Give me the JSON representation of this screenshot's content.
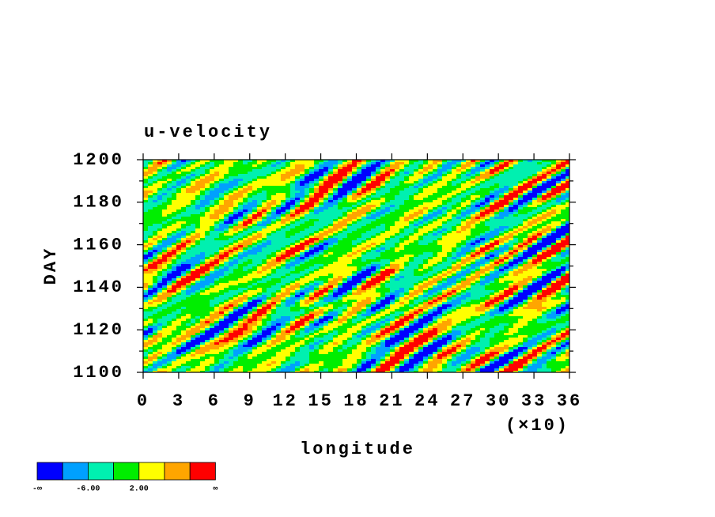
{
  "chart_data": {
    "type": "contour",
    "title": "u-velocity",
    "x_label": "longitude",
    "y_label": "DAY",
    "x_scale_label": "(×10)",
    "xlim": [
      0,
      36
    ],
    "xticks": [
      0,
      3,
      6,
      9,
      12,
      15,
      18,
      21,
      24,
      27,
      30,
      33,
      36
    ],
    "ylim": [
      1100,
      1200
    ],
    "yticks": [
      1100,
      1120,
      1140,
      1160,
      1180,
      1200
    ],
    "yminorticks": [
      1110,
      1130,
      1150,
      1170,
      1190
    ],
    "colorbar": {
      "colors": [
        "#0000ff",
        "#00a0ff",
        "#00f0b0",
        "#00ee00",
        "#ffff00",
        "#ffa500",
        "#ff0000"
      ],
      "labels": [
        {
          "boundary": 0,
          "label": "-∞"
        },
        {
          "boundary": 2,
          "label": "-6.00"
        },
        {
          "boundary": 4,
          "label": "2.00"
        },
        {
          "boundary": 7,
          "label": "∞"
        }
      ]
    }
  }
}
